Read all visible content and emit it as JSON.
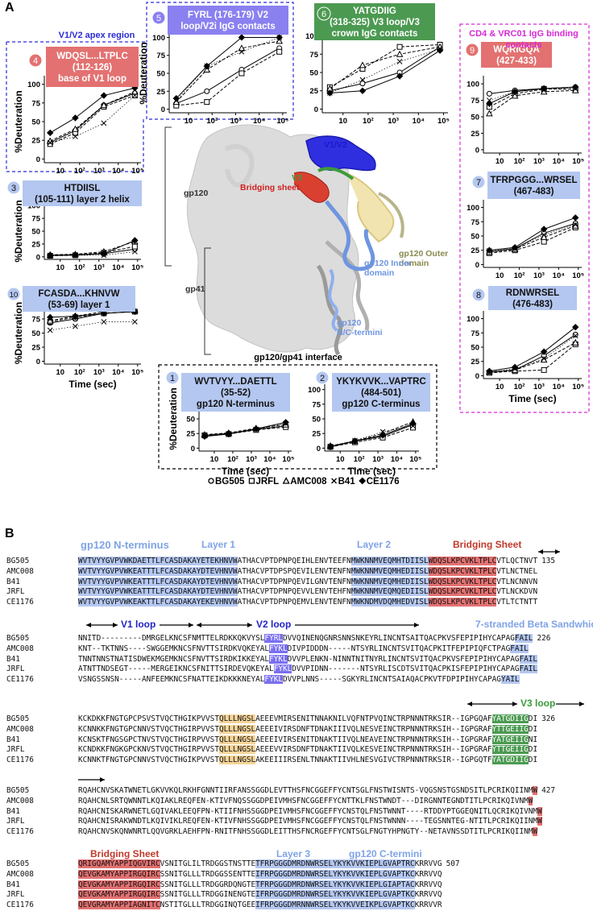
{
  "panel_a": {
    "letter": "A",
    "xlim": [
      1.5,
      150000
    ],
    "ylim": [
      -5,
      105
    ],
    "log_x": true,
    "x": [
      3,
      60,
      1800,
      72000
    ],
    "xticks": [
      10,
      {
        "value": 100,
        "label": "10²"
      },
      {
        "value": 1000,
        "label": "10³"
      },
      {
        "value": 10000,
        "label": "10⁴"
      },
      {
        "value": 100000,
        "label": "10⁵"
      }
    ],
    "yticks": [
      0,
      25,
      50,
      75,
      100
    ],
    "ylabel": "%Deuteration",
    "xlabel": "Time (sec)",
    "series": [
      {
        "name": "BG505",
        "marker": "circle",
        "dash": "none"
      },
      {
        "name": "JRFL",
        "marker": "square",
        "dash": "4,2"
      },
      {
        "name": "AMC008",
        "marker": "triangle",
        "dash": "4,2"
      },
      {
        "name": "B41",
        "marker": "x",
        "dash": "1.5,2"
      },
      {
        "name": "CE1176",
        "marker": "diamond",
        "dash": "none"
      }
    ],
    "groups": [
      {
        "lines": [
          "V1/V2 apex region"
        ],
        "color": "#2b2bd6"
      },
      {
        "lines": [
          "CD4 & VRC01 IgG binding",
          "contacts"
        ],
        "color": "#d62bd6"
      },
      {
        "lines": [
          "gp120/gp41 interface"
        ],
        "color": "#000000"
      }
    ],
    "plots": [
      {
        "badge": "4",
        "lines": [
          "WDQSL...LTPLC",
          "(112-126)",
          "base of V1 loop"
        ],
        "color": "#e37171",
        "show_ylabel": true,
        "show_xlabel": false,
        "values": [
          [
            22,
            38,
            72,
            88
          ],
          [
            20,
            35,
            70,
            85
          ],
          [
            24,
            40,
            72,
            90
          ],
          [
            22,
            30,
            48,
            85
          ],
          [
            35,
            55,
            85,
            95
          ]
        ]
      },
      {
        "badge": "5",
        "lines": [
          "FYRL (176-179) V2",
          "loop/V2i IgG contacts"
        ],
        "color": "#8a80f0",
        "show_ylabel": true,
        "show_xlabel": false,
        "values": [
          [
            8,
            25,
            55,
            85
          ],
          [
            5,
            10,
            50,
            80
          ],
          [
            10,
            55,
            85,
            95
          ],
          [
            12,
            60,
            80,
            100
          ],
          [
            15,
            60,
            100,
            100
          ]
        ]
      },
      {
        "badge": "6",
        "lines": [
          "YATGDIIG",
          "(318-325) V3 loop/V3",
          "crown IgG contacts"
        ],
        "color": "#4c9a52",
        "show_ylabel": false,
        "show_xlabel": false,
        "values": [
          [
            25,
            35,
            50,
            85
          ],
          [
            30,
            55,
            85,
            88
          ],
          [
            28,
            60,
            75,
            85
          ],
          [
            22,
            40,
            65,
            82
          ],
          [
            22,
            25,
            45,
            80
          ]
        ]
      },
      {
        "badge": "3",
        "lines": [
          "HTDIISL",
          "(105-111) layer 2 helix"
        ],
        "color": "#b4c7f0",
        "show_ylabel": true,
        "show_xlabel": false,
        "values": [
          [
            3,
            3,
            6,
            15
          ],
          [
            2,
            3,
            8,
            20
          ],
          [
            4,
            5,
            10,
            30
          ],
          [
            2,
            3,
            3,
            10
          ],
          [
            3,
            4,
            6,
            32
          ]
        ]
      },
      {
        "badge": "10",
        "lines": [
          "FCASDA...KHNVW",
          "(53-69) layer 1"
        ],
        "color": "#b4c7f0",
        "show_ylabel": true,
        "show_xlabel": true,
        "values": [
          [
            68,
            75,
            85,
            88
          ],
          [
            70,
            78,
            85,
            88
          ],
          [
            72,
            80,
            88,
            90
          ],
          [
            55,
            62,
            70,
            70
          ],
          [
            78,
            80,
            85,
            88
          ]
        ]
      },
      {
        "badge": "1",
        "lines": [
          "WVTVYY...DAETTL",
          "(35-52)",
          "gp120 N-terminus"
        ],
        "color": "#b4c7f0",
        "show_ylabel": true,
        "show_xlabel": true,
        "values": [
          [
            22,
            25,
            32,
            38
          ],
          [
            22,
            24,
            31,
            36
          ],
          [
            23,
            26,
            34,
            40
          ],
          [
            21,
            24,
            32,
            42
          ],
          [
            20,
            24,
            33,
            44
          ]
        ]
      },
      {
        "badge": "2",
        "lines": [
          "YKYKVVK...VAPTRC",
          "(484-501)",
          "gp120 C-terminus"
        ],
        "color": "#b4c7f0",
        "show_ylabel": false,
        "show_xlabel": true,
        "values": [
          [
            3,
            12,
            20,
            40
          ],
          [
            2,
            10,
            18,
            35
          ],
          [
            4,
            12,
            25,
            45
          ],
          [
            3,
            13,
            28,
            38
          ],
          [
            2,
            12,
            22,
            42
          ]
        ]
      },
      {
        "badge": "9",
        "lines": [
          "WQRIGQA",
          "(427-433)"
        ],
        "color": "#e37171",
        "show_ylabel": false,
        "show_xlabel": false,
        "values": [
          [
            85,
            90,
            93,
            95
          ],
          [
            65,
            85,
            92,
            92
          ],
          [
            55,
            82,
            88,
            90
          ],
          [
            75,
            88,
            93,
            93
          ],
          [
            70,
            88,
            93,
            95
          ]
        ]
      },
      {
        "badge": "7",
        "lines": [
          "TFRPGGG...WRSEL",
          "(467-483)"
        ],
        "color": "#b4c7f0",
        "show_ylabel": false,
        "show_xlabel": false,
        "values": [
          [
            22,
            28,
            55,
            72
          ],
          [
            20,
            25,
            40,
            65
          ],
          [
            22,
            27,
            48,
            68
          ],
          [
            24,
            28,
            52,
            70
          ],
          [
            25,
            30,
            62,
            82
          ]
        ]
      },
      {
        "badge": "8",
        "lines": [
          "RDNWRSEL",
          "(476-483)"
        ],
        "color": "#b4c7f0",
        "show_ylabel": false,
        "show_xlabel": true,
        "values": [
          [
            6,
            10,
            35,
            72
          ],
          [
            5,
            8,
            10,
            55
          ],
          [
            7,
            10,
            28,
            58
          ],
          [
            6,
            12,
            30,
            70
          ],
          [
            8,
            15,
            42,
            85
          ]
        ]
      }
    ],
    "structure": {
      "labels": [
        {
          "lines": [
            "gp120"
          ],
          "color": "#333333"
        },
        {
          "lines": [
            "gp41"
          ],
          "color": "#333333"
        },
        {
          "lines": [
            "V1/V2"
          ],
          "color": "#1a1ad0"
        },
        {
          "lines": [
            "V3"
          ],
          "color": "#3c9a3c"
        },
        {
          "lines": [
            "Bridging sheet"
          ],
          "color": "#d02020"
        },
        {
          "lines": [
            "gp120 Outer",
            "domain"
          ],
          "color": "#8a8a50"
        },
        {
          "lines": [
            "gp120 Inner",
            "domain"
          ],
          "color": "#6f95e0"
        },
        {
          "lines": [
            "gp120",
            "N/C-termini"
          ],
          "color": "#6f95e0"
        }
      ]
    }
  },
  "panel_b": {
    "letter": "B",
    "names": [
      "BG505",
      "AMC008",
      "B41",
      "JRFL",
      "CE1176"
    ],
    "blocks": [
      {
        "end": 135,
        "labels": [
          {
            "text": "gp120 N-terminus",
            "color": "#7fa3e6"
          },
          {
            "text": "Layer 1",
            "color": "#7fa3e6"
          },
          {
            "text": "Layer 2",
            "color": "#7fa3e6"
          },
          {
            "text": "Bridging Sheet",
            "color": "#c0392b"
          }
        ],
        "colors": [
          "#b4c7f0",
          null,
          "#b4c7f0",
          "#e37171",
          null
        ],
        "rows": [
          [
            "WVTVYYGVPVWKDAETTLFCASDAKAYETEKHNVW",
            "ATHACVPTDPNPQEIHLENVTEEFN",
            "MWKNNMVEQMHTDIISL",
            "WDQSLKPCVKLTPLC",
            "VTLQCTNVT"
          ],
          [
            "WVTVYYGVPVWKEATTTLFCASDAKAYDTEVHNVW",
            "ATHACVPTDPSPQEVILENVTENFN",
            "MWKNNMVEQMHEDIISL",
            "WDQSLKPCVKLTPLC",
            "VTLNCTNEL"
          ],
          [
            "WVTVYYGVPVWKEATTTLFCASDAKAYDTEVHNVW",
            "ATHACVPTDPNPQEVILGNVTENFN",
            "MWKNNMVEQMHEDIISL",
            "WDQSLKPCVKLTPLC",
            "VTLNCNNVN"
          ],
          [
            "WVTVYYGVPVWKEATTTLFCASDAKAYDTEVHNVW",
            "ATHACVPTDPNPQEVVLENVTEHFN",
            "MWKNNMVEQMQEDIISL",
            "WDQSLKPCVKLTPLC",
            "VTLNCKDVN"
          ],
          [
            "WVTVYYGVPVWKEAKTTLFCASDAKAYEKEVHNVW",
            "ATHACVPTDPNPQEMVLENVTENFN",
            "MWKNDMVDQMHEDVISL",
            "WDQSLKPCVKLTPLC",
            "VTLTCTNTT"
          ]
        ]
      },
      {
        "end": 226,
        "labels": [
          {
            "text": "V1 loop",
            "color": "#2323c8"
          },
          {
            "text": "V2 loop",
            "color": "#2323c8"
          },
          {
            "text": "7-stranded Beta Sandwhich",
            "color": "#7fa3e6"
          }
        ],
        "colors": [
          null,
          "#7a6ff0",
          null,
          "#b4c7f0"
        ],
        "rows": [
          [
            "NNITD---------DMRGELKNCSFNMTTELRDKKQKVYSL",
            "FYRL",
            "DVVQINENQGNRSNNSNKEYRLINCNTSAITQACPKVSFEPIPIHYCAPAG",
            "FAIL"
          ],
          [
            "KNT--TKTNNS----SWGGEMKNCSFNVTTSIRDKVQKEYAL",
            "FYKL",
            "DIVPIDDDN-----NTSYRLINCNTSVITQACPKITFEPIPIQFCTPAG",
            "FAIL"
          ],
          [
            "TNNTNNSTNATISDWEKMGEMKNCSFNVTTSIRDKIKKEYAL",
            "FYKL",
            "DVVPLENKN-NINNTNITNYRLINCNTSVITQACPKVSFEPIPIHYCAPAG",
            "FAIL"
          ],
          [
            "ATNTTNDSEGT-----MERGEIKNCSFNITTSIRDEVQKEYAL",
            "FYKL",
            "DVVPIDNN-------NTSYRLISCDTSVITQACPKISFEPIPIHYCAPAG",
            "FAIL"
          ],
          [
            "VSNGSSNSN-----ANFEEMKNCSFNATTEIKDKKKNEYAL",
            "FYKL",
            "DVVPLNNS-----SGKYRLINCNTSAIAQACPKVTFDPIPIHYCAPAG",
            "YAIL"
          ]
        ]
      },
      {
        "end": 326,
        "labels": [
          {
            "text": "V3 loop",
            "color": "#3c9a3c"
          }
        ],
        "colors": [
          null,
          "#f5d59a",
          null,
          "#4c9a52",
          null
        ],
        "rows": [
          [
            "KCKDKKFNGTGPCPSVSTVQCTHGIKPVVST",
            "QLLLNGSL",
            "AEEEVMIRSENITNNAKNILVQFNTPVQINCTRPNNNTRKSIR--IGPGQAF",
            "YATGDIIG",
            "DI"
          ],
          [
            "KCNNKKFNGTGPCNNVSTVQCTHGIRPVVST",
            "QLLLNGSL",
            "AEEEIVIRSDNFTDNAKIIIVQLNESVEINCTRPNNNTRKSIH--IGPGRAF",
            "YTTGEIIG",
            "DI"
          ],
          [
            "KCNSKTFNGSGPCTNVSTVQCTHGIRPVVST",
            "QLLLNGSL",
            "AEEEIVIRSENITDNAKTIIVQLNEAVEINCTRPNNNTRKSIH--IGPGRAF",
            "YATGEIIG",
            "NI"
          ],
          [
            "KCNDKKFNGKGPCKNVSTVQCTHGIRPVVST",
            "QLLLNGSL",
            "AEEEVVIRSDNFTDNAKTIIVQLKESVEINCTRPNNNTRKSIH--IGPGRAF",
            "YTTGEIIG",
            "DI"
          ],
          [
            "KCNNKTFNGTGPCNNVSTVQCTHGIKPVVST",
            "QLLLNGSL",
            "AKEEIIIRSENLTNNAKTIIVHLNESVGIVCTRPNNNTRKSIR--IGPGQTF",
            "YATGDIIG",
            "DI"
          ]
        ]
      },
      {
        "end": 427,
        "labels": [],
        "colors": [
          null,
          "#e37171"
        ],
        "rows": [
          [
            "RQAHCNVSKATWNETLGKVVKQLRKHFGNNTIIRFANSSGGDLEVTTHSFNCGGEFFYCNTSGLFNSTWISNTS-VQGSNSTGSNDSITLPCRIKQIINM",
            "W"
          ],
          [
            "RQAHCNLSRTQWNNTLKQIAKLREQFEN-KTIVFNQSSGGDPEIVMHSFNCGGEFFYCNTTKLFNSTWNDT---DIRGNNTEGNDTITLPCRIKQIVNM",
            "W"
          ],
          [
            "RQAHCNISKARWNETLGQIVAKLEEQFPN-KTIIFNHSSGGDPEIVMHSFNCGGEFFYCNSTQLFNSTWNNT----RTDDYPTGGEQNITLQCRIKQIVNM",
            "W"
          ],
          [
            "RQAHCNISRAKWNDTLKQIVIKLREQFEN-KTIVFNHSSGGDPEIVMHSFNCGGEFFYCNSTQLFNSTWNNN----TEGSNNTEG-NTITLPCRIKQIINM",
            "W"
          ],
          [
            "RQAHCNVSKQNWNRTLQQVGRKLAEHFPN-RNITFNHSSGGDLEITTHSFNCRGEFFYCNTSGLFNGTYHPNGTY--NETAVNSSDTITLPCRIKQIINM",
            "W"
          ]
        ]
      },
      {
        "end": 507,
        "labels": [
          {
            "text": "Bridging Sheet",
            "color": "#c0392b"
          },
          {
            "text": "Layer 3",
            "color": "#7fa3e6"
          },
          {
            "text": "gp120 C-termini",
            "color": "#7fa3e6"
          }
        ],
        "colors": [
          "#e37171",
          null,
          "#b4c7f0",
          null
        ],
        "rows": [
          [
            "QRIGQAMYAPPIQGVIRC",
            "VSNITGLILTRDGGSTNSTTE",
            "TFRPGGGDMRDNWRSELYKYKVVKIEPLGVAPTRC",
            "KRRVVG"
          ],
          [
            "QEVGKAMYAPPIRGQIRC",
            "SSNITGLLLTRDGGSSENTTE",
            "IFRPGGGDMRDNWRSELYKYKVVKIEPLGVAPTKC",
            "KRRVVQ"
          ],
          [
            "QEVGKAMYAPPIRGQIRC",
            "SSNITGLLLTRDGGRDQNGTE",
            "TFRPGGGDMRDNWRSELYKYKVVKIEPLGIAPTAC",
            "KRRVVQ"
          ],
          [
            "QEVGKAMYAPPIRGQIRC",
            "SSNITGLLLTRDGGINENGTE",
            "IFRPGGGDMRDNWRSELYKYKVVKIEPLGVAPTKC",
            "KRRVVQ"
          ],
          [
            "QEVGRAMYAPPIAGNITC",
            "NSTITGLLLTRDGGINQTGEE",
            "IFRPGGGDMRNNWRSELYKYKVVEIKPLGVAPTKC",
            "KRRVVR"
          ]
        ]
      }
    ]
  }
}
